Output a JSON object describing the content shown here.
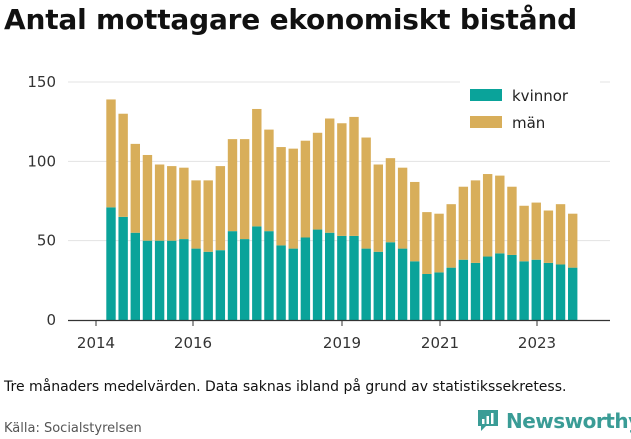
{
  "title": "Antal mottagare ekonomiskt bistånd",
  "note": "Tre månaders medelvärden. Data saknas ibland på grund av statistikssekretess.",
  "source": "Källa: Socialstyrelsen",
  "brand": "Newsworthy",
  "colors": {
    "kvinnor": "#0aa39a",
    "man": "#d8ae5a",
    "brand": "#3a9c96"
  },
  "chart_data": {
    "type": "bar",
    "stacked": true,
    "grid": true,
    "legend_position": "top-right",
    "ylim": [
      0,
      150
    ],
    "yticks": [
      0,
      50,
      100,
      150
    ],
    "xticks": [
      "2014",
      "2016",
      "2019",
      "2021",
      "2023"
    ],
    "series": [
      {
        "name": "kvinnor",
        "values": [
          71,
          65,
          55,
          50,
          50,
          50,
          51,
          45,
          43,
          44,
          56,
          51,
          59,
          56,
          47,
          45,
          52,
          57,
          55,
          53,
          53,
          45,
          43,
          49,
          45,
          37,
          29,
          30,
          33,
          38,
          36,
          40,
          42,
          41,
          37,
          38,
          36,
          35,
          33
        ]
      },
      {
        "name": "män",
        "values": [
          68,
          65,
          56,
          54,
          48,
          47,
          45,
          43,
          45,
          53,
          58,
          63,
          74,
          64,
          62,
          63,
          61,
          61,
          72,
          71,
          75,
          70,
          55,
          53,
          51,
          50,
          39,
          37,
          40,
          46,
          52,
          52,
          49,
          43,
          35,
          36,
          33,
          38,
          34
        ]
      }
    ]
  }
}
